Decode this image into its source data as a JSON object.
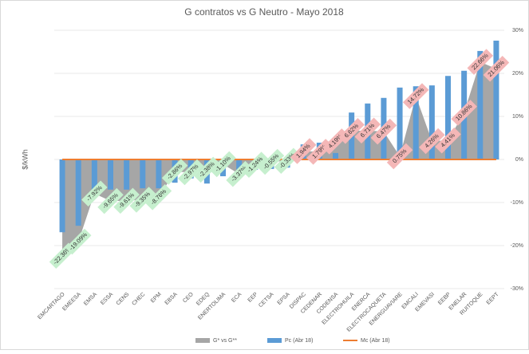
{
  "chart_data": {
    "type": "bar",
    "title": "G contratos vs G Neutro - Mayo 2018",
    "ylabel": "$/kWh",
    "categories": [
      "EMCARTAGO",
      "EMEESA",
      "EMSA",
      "ESSA",
      "CENS",
      "CHEC",
      "EPM",
      "EBSA",
      "CEO",
      "EDEQ",
      "ENERTOLIMA",
      "ECA",
      "EEP",
      "CETSA",
      "EPSA",
      "DISPAC",
      "CEDENAR",
      "CODENSA",
      "ELECTROHUILA",
      "ENERCA",
      "ELECTROCAQUETA",
      "ENERGUAVIARE",
      "EMCALI",
      "EMEVASI",
      "EEBP",
      "ENELAR",
      "RUITOQUE",
      "EEPT"
    ],
    "series": [
      {
        "name": "G* vs G**",
        "type": "area",
        "axis": "y2",
        "color": "#a6a6a6",
        "values": [
          -22.36,
          -19.09,
          -7.92,
          -9.65,
          -9.61,
          -9.35,
          -8.76,
          -2.86,
          -2.97,
          -2.38,
          -1.1,
          -3.37,
          -1.24,
          -0.55,
          -0.33,
          1.94,
          1.79,
          4.19,
          6.62,
          6.71,
          6.47,
          0.75,
          14.72,
          4.26,
          4.41,
          10.86,
          22.66,
          21.06
        ],
        "value_labels": [
          "-22.36%",
          "-19.09%",
          "-7.92%",
          "-9.65%",
          "-9.61%",
          "-9.35%",
          "-8.76%",
          "-2.86%",
          "-2.97%",
          "-2.38%",
          "-1.10%",
          "-3.37%",
          "-1.24%",
          "-0.55%",
          "-0.33%",
          "1.94%",
          "1.79%",
          "4.19%",
          "6.62%",
          "6.71%",
          "6.47%",
          "0.75%",
          "14.72%",
          "4.26%",
          "4.41%",
          "10.86%",
          "22.66%",
          "21.06%"
        ]
      },
      {
        "name": "Pc (Abr 18)",
        "type": "bar",
        "axis": "y",
        "color": "#5b9bd5",
        "values": [
          -16.9,
          -15.4,
          -7.8,
          -7,
          -7,
          -6.7,
          -6.7,
          -5.4,
          -4.4,
          -5.6,
          -3.9,
          -2.8,
          -2.4,
          -2.2,
          -1.9,
          3.5,
          3.9,
          1.5,
          10.9,
          13,
          14.3,
          16.7,
          17,
          17.2,
          19.4,
          20.6,
          25.2,
          27.6
        ]
      },
      {
        "name": "Mc (Abr 18)",
        "type": "line",
        "axis": "y",
        "color": "#ed7d31",
        "values": [
          0,
          0,
          0,
          0,
          0,
          0,
          0,
          0,
          0,
          0,
          0,
          0,
          0,
          0,
          0,
          0,
          0,
          0,
          0,
          0,
          0,
          0,
          0,
          0,
          0,
          0,
          0,
          0
        ]
      }
    ],
    "ylim": [
      -30,
      30
    ],
    "y2lim": [
      -30,
      30
    ],
    "y2ticks": [
      {
        "value": 30,
        "label": "30%"
      },
      {
        "value": 20,
        "label": "20%"
      },
      {
        "value": 10,
        "label": "10%"
      },
      {
        "value": 0,
        "label": "0%"
      },
      {
        "value": -10,
        "label": "-10%"
      },
      {
        "value": -20,
        "label": "-20%"
      },
      {
        "value": -30,
        "label": "-30%"
      }
    ],
    "grid": true,
    "legend": "bottom",
    "label_colors": {
      "negative": "#c6efce",
      "positive": "#f4b7b7"
    }
  }
}
